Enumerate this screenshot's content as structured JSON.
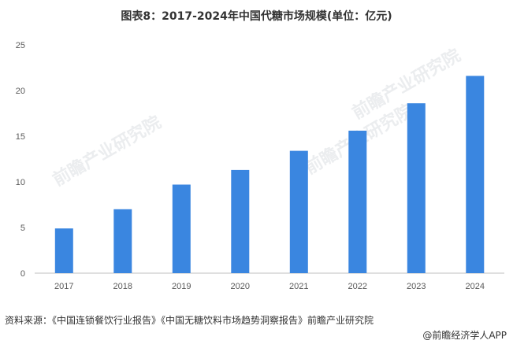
{
  "title": "图表8：2017-2024年中国代糖市场规模(单位：亿元)",
  "chart_data": {
    "type": "bar",
    "categories": [
      "2017",
      "2018",
      "2019",
      "2020",
      "2021",
      "2022",
      "2023",
      "2024"
    ],
    "values": [
      4.9,
      7.0,
      9.7,
      11.3,
      13.4,
      15.6,
      18.6,
      21.6
    ],
    "ylim": [
      0,
      25
    ],
    "yticks": [
      "0",
      "5",
      "10",
      "15",
      "20",
      "25"
    ],
    "bar_color": "#3a86e0",
    "grid": false,
    "legend": "none"
  },
  "source": "资料来源：《中国连锁餐饮行业报告》《中国无糖饮料市场趋势洞察报告》前瞻产业研究院",
  "app_credit": "@前瞻经济学人APP",
  "watermark": "前瞻产业研究院"
}
